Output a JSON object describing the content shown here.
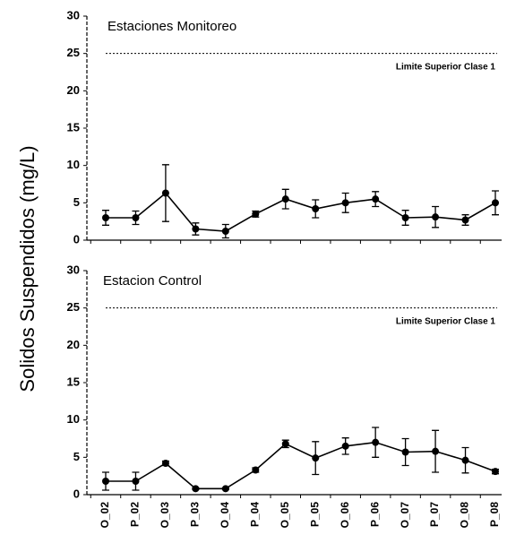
{
  "chart_data": [
    {
      "type": "line",
      "title": "Estaciones Monitoreo",
      "y_label": "Solidos Suspendidos (mg/L)",
      "values": [
        3,
        3,
        6.3,
        1.5,
        1.2,
        3.5,
        5.5,
        4.2,
        5,
        5.5,
        3,
        3.1,
        2.7,
        5
      ],
      "errors": [
        1,
        0.9,
        3.8,
        0.8,
        0.9,
        0.4,
        1.3,
        1.2,
        1.3,
        1,
        1,
        1.4,
        0.7,
        1.6
      ],
      "color": "#000000",
      "ylim": [
        0,
        30
      ],
      "yticks": [
        0,
        5,
        10,
        15,
        20,
        25,
        30
      ],
      "reference": {
        "value": 25,
        "label": "Limite Superior  Clase 1"
      }
    },
    {
      "type": "line",
      "title": "Estacion Control",
      "categories": [
        "O_02",
        "P_02",
        "O_03",
        "P_03",
        "O_04",
        "P_04",
        "O_05",
        "P_05",
        "O_06",
        "P_06",
        "O_07",
        "P_07",
        "O_08",
        "P_08"
      ],
      "values": [
        1.8,
        1.8,
        4.2,
        0.8,
        0.8,
        3.3,
        6.8,
        4.9,
        6.5,
        7,
        5.7,
        5.8,
        4.6,
        3.1
      ],
      "errors": [
        1.2,
        1.2,
        0.3,
        0.1,
        0.1,
        0.3,
        0.5,
        2.2,
        1.1,
        2,
        1.8,
        2.8,
        1.7,
        0.3
      ],
      "color": "#000000",
      "ylim": [
        0,
        30
      ],
      "yticks": [
        0,
        5,
        10,
        15,
        20,
        25,
        30
      ],
      "reference": {
        "value": 25,
        "label": "Limite Superior  Clase 1"
      }
    }
  ]
}
